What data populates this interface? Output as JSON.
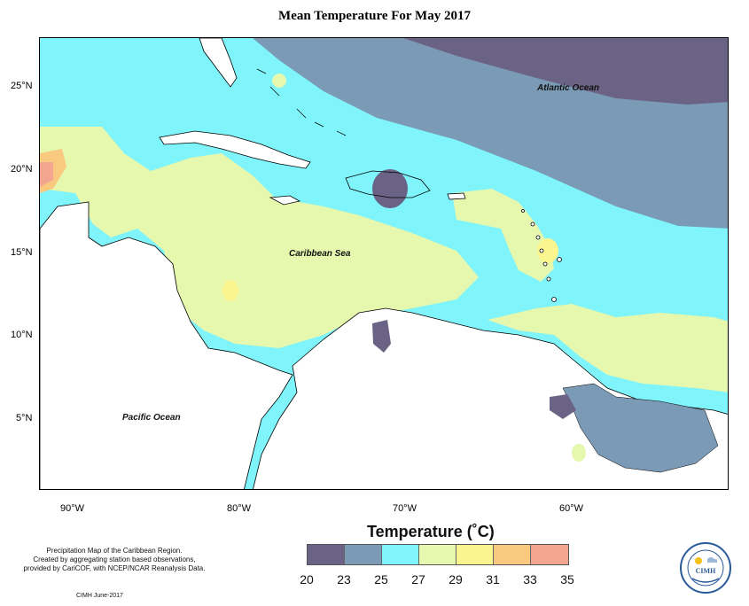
{
  "title": "Mean Temperature For May 2017",
  "map": {
    "lat_ticks": [
      "25°N",
      "20°N",
      "15°N",
      "10°N",
      "5°N"
    ],
    "lon_ticks": [
      "90°W",
      "80°W",
      "70°W",
      "60°W"
    ],
    "labels": {
      "atlantic": "Atlantic Ocean",
      "caribbean": "Caribbean Sea",
      "pacific": "Pacific Ocean"
    },
    "colors": {
      "c20_23": "#6b6385",
      "c23_25": "#7b9ab5",
      "c25_27": "#7ff4fb",
      "c27_29": "#e6f7ae",
      "c29_31": "#fbf58f",
      "c31_33": "#f8c97f",
      "c33_35": "#f2a68f",
      "land": "#ffffff"
    }
  },
  "legend": {
    "title": "Temperature (˚C)",
    "colors": [
      "#6b6385",
      "#7b9ab5",
      "#7ff4fb",
      "#e6f7ae",
      "#fbf58f",
      "#f8c97f",
      "#f2a68f"
    ],
    "ticks": [
      "20",
      "23",
      "25",
      "27",
      "29",
      "31",
      "33",
      "35"
    ]
  },
  "credits": {
    "line1": "Precipitation Map of the Caribbean Region.",
    "line2": "Created by aggregating station based observations,",
    "line3": "provided by CariCOF, with NCEP/NCAR Reanalysis Data.",
    "date": "CIMH June-2017"
  },
  "logo": {
    "text": "CIMH",
    "icon": "cimh-logo-icon"
  }
}
